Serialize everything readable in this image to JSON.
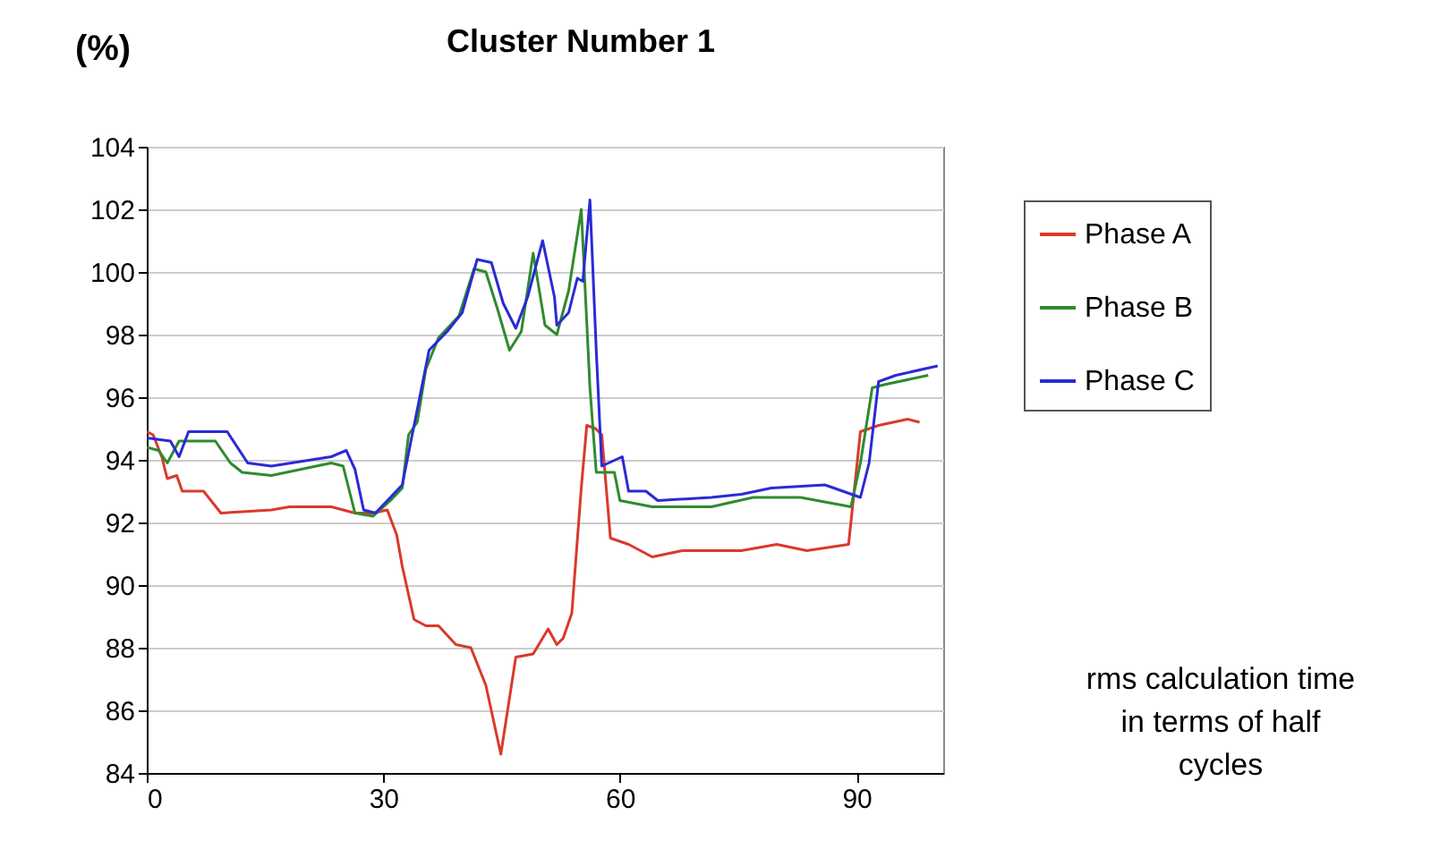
{
  "chart_data": {
    "type": "line",
    "title": "Cluster Number 1",
    "ylabel": "(%)",
    "xlabel": "rms calculation time in terms of half cycles",
    "xlim": [
      0,
      101
    ],
    "xticks": [
      0,
      30,
      60,
      90
    ],
    "ylim": [
      84,
      104
    ],
    "yticks": [
      84,
      86,
      88,
      90,
      92,
      94,
      96,
      98,
      100,
      102,
      104
    ],
    "grid": "y",
    "legend": "right",
    "marker": "none",
    "line_style": "solid",
    "series": [
      {
        "name": "Phase A",
        "color": "#d93a2b",
        "x": [
          0,
          0.8,
          1.9,
          2.6,
          3.8,
          4.5,
          7.2,
          9.4,
          15.8,
          18.1,
          23.4,
          26.4,
          28.7,
          30.5,
          31.7,
          32.4,
          33.9,
          35.4,
          37.0,
          39.2,
          41.1,
          43.0,
          44.9,
          46.8,
          49.0,
          50.9,
          52.0,
          52.8,
          53.9,
          55.1,
          55.8,
          56.9,
          57.7,
          58.8,
          61.1,
          64.1,
          67.9,
          75.4,
          79.9,
          83.7,
          89.0,
          90.5,
          92.8,
          96.5,
          98.0
        ],
        "values": [
          94.9,
          94.8,
          94.1,
          93.4,
          93.5,
          93.0,
          93.0,
          92.3,
          92.4,
          92.5,
          92.5,
          92.3,
          92.3,
          92.4,
          91.6,
          90.6,
          88.9,
          88.7,
          88.7,
          88.1,
          88.0,
          86.8,
          84.6,
          87.7,
          87.8,
          88.6,
          88.1,
          88.3,
          89.1,
          93.1,
          95.1,
          95.0,
          94.8,
          91.5,
          91.3,
          90.9,
          91.1,
          91.1,
          91.3,
          91.1,
          91.3,
          94.9,
          95.1,
          95.3,
          95.2
        ]
      },
      {
        "name": "Phase B",
        "color": "#2e8b2e",
        "x": [
          0,
          1.5,
          2.6,
          4.1,
          8.7,
          10.6,
          12.1,
          15.8,
          23.4,
          24.9,
          26.4,
          28.7,
          30.9,
          32.4,
          33.2,
          34.3,
          35.4,
          37.0,
          38.5,
          39.6,
          41.5,
          43.0,
          44.5,
          46.0,
          47.5,
          49.0,
          50.5,
          52.0,
          53.5,
          55.1,
          56.2,
          57.0,
          59.3,
          60.0,
          64.1,
          71.6,
          76.9,
          82.9,
          89.3,
          90.5,
          92.0,
          93.5,
          99.1
        ],
        "values": [
          94.4,
          94.3,
          93.9,
          94.6,
          94.6,
          93.9,
          93.6,
          93.5,
          93.9,
          93.8,
          92.3,
          92.2,
          92.7,
          93.1,
          94.8,
          95.2,
          96.9,
          97.9,
          98.3,
          98.6,
          100.1,
          100.0,
          98.8,
          97.5,
          98.1,
          100.6,
          98.3,
          98.0,
          99.4,
          102.0,
          96.3,
          93.6,
          93.6,
          92.7,
          92.5,
          92.5,
          92.8,
          92.8,
          92.5,
          93.9,
          96.3,
          96.4,
          96.7
        ]
      },
      {
        "name": "Phase C",
        "color": "#2a2ad6",
        "x": [
          0,
          3.0,
          4.1,
          5.3,
          10.2,
          12.8,
          15.8,
          23.4,
          25.3,
          26.4,
          27.5,
          29.0,
          32.4,
          33.9,
          35.8,
          38.1,
          40.0,
          41.9,
          43.7,
          45.2,
          46.8,
          48.3,
          50.2,
          51.7,
          52.0,
          53.5,
          54.6,
          55.3,
          56.2,
          57.0,
          57.7,
          60.3,
          61.1,
          63.3,
          64.8,
          71.6,
          75.4,
          79.2,
          86.0,
          90.5,
          91.6,
          92.8,
          95.0,
          100.3
        ],
        "values": [
          94.7,
          94.6,
          94.1,
          94.9,
          94.9,
          93.9,
          93.8,
          94.1,
          94.3,
          93.7,
          92.4,
          92.3,
          93.2,
          95.1,
          97.5,
          98.1,
          98.7,
          100.4,
          100.3,
          99.0,
          98.2,
          99.2,
          101.0,
          99.2,
          98.3,
          98.7,
          99.8,
          99.7,
          102.3,
          97.5,
          93.8,
          94.1,
          93.0,
          93.0,
          92.7,
          92.8,
          92.9,
          93.1,
          93.2,
          92.8,
          93.9,
          96.5,
          96.7,
          97.0
        ]
      }
    ]
  }
}
